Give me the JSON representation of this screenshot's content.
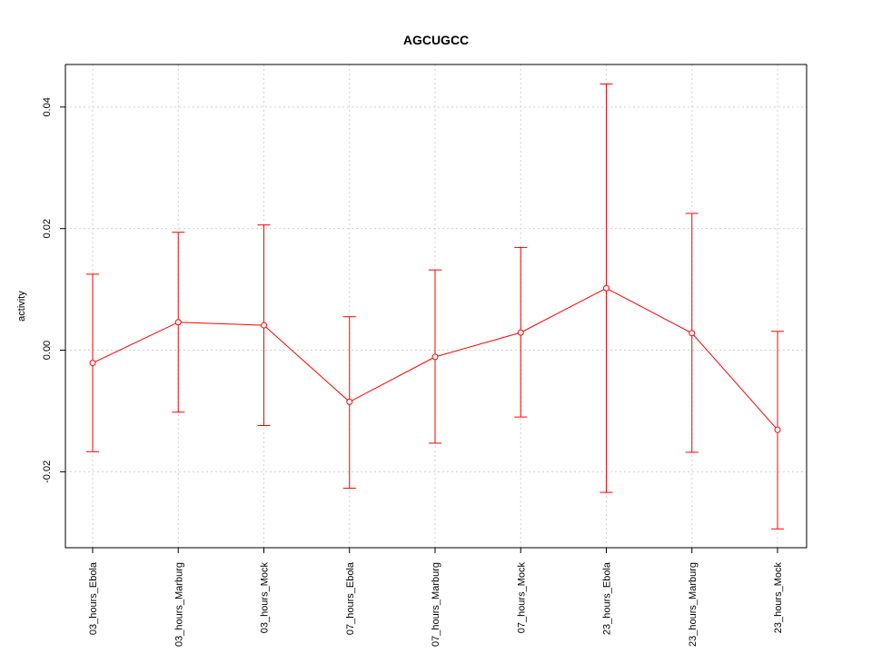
{
  "chart_data": {
    "type": "line",
    "title": "AGCUGCC",
    "xlabel": "",
    "ylabel": "activity",
    "categories": [
      "03_hours_Ebola",
      "03_hours_Marburg",
      "03_hours_Mock",
      "07_hours_Ebola",
      "07_hours_Marburg",
      "07_hours_Mock",
      "23_hours_Ebola",
      "23_hours_Marburg",
      "23_hours_Mock"
    ],
    "series": [
      {
        "values": [
          -0.0021,
          0.0046,
          0.0041,
          -0.0085,
          -0.0011,
          0.0029,
          0.0102,
          0.0028,
          -0.0131
        ],
        "upper": [
          0.0125,
          0.0194,
          0.0206,
          0.0055,
          0.0132,
          0.0169,
          0.0438,
          0.0225,
          0.0031
        ],
        "lower": [
          -0.0167,
          -0.0102,
          -0.0124,
          -0.0227,
          -0.0153,
          -0.011,
          -0.0234,
          -0.0168,
          -0.0294
        ]
      }
    ],
    "ylim": [
      -0.0325,
      0.047
    ],
    "yticks": [
      "-0.02",
      "0.00",
      "0.02",
      "0.04"
    ],
    "ytick_values": [
      -0.02,
      0,
      0.02,
      0.04
    ],
    "grid": true,
    "colors": {
      "series": "#ff0000",
      "grid": "#d3d3d3",
      "axis": "#000000"
    }
  }
}
